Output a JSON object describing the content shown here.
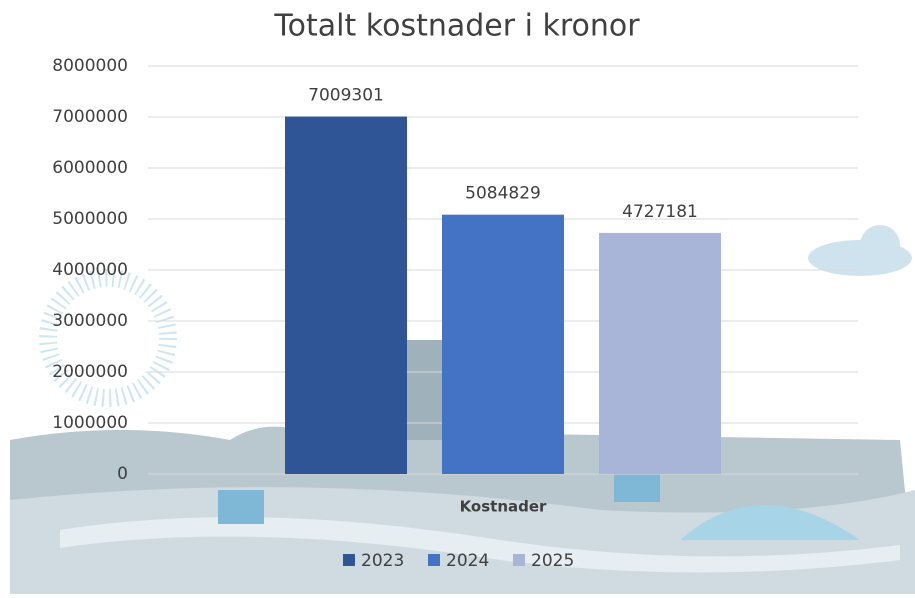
{
  "chart_data": {
    "type": "bar",
    "title": "Totalt kostnader i kronor",
    "categories": [
      "Kostnader"
    ],
    "series": [
      {
        "name": "2023",
        "color": "#2f5597",
        "values": [
          7009301
        ]
      },
      {
        "name": "2024",
        "color": "#4472c4",
        "values": [
          5084829
        ]
      },
      {
        "name": "2025",
        "color": "#a9b4d9",
        "values": [
          4727181
        ]
      }
    ],
    "ylim": [
      0,
      8000000
    ],
    "yticks": [
      0,
      1000000,
      2000000,
      3000000,
      4000000,
      5000000,
      6000000,
      7000000,
      8000000
    ],
    "grid": true,
    "legend": "bottom"
  }
}
